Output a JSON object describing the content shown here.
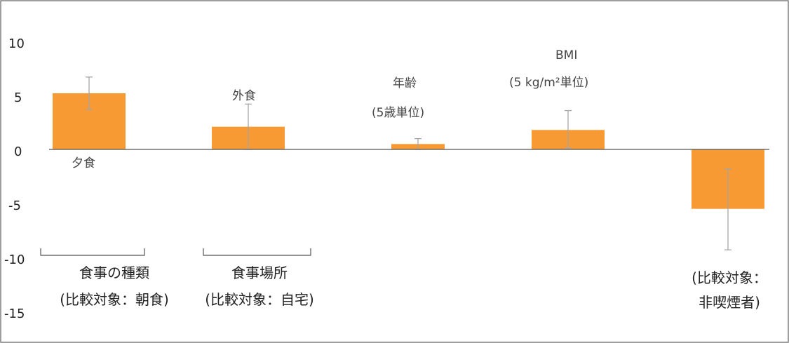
{
  "chart_data": {
    "type": "bar",
    "ylim": [
      -15,
      12
    ],
    "yticks": [
      "10",
      "5",
      "0",
      "-5",
      "-10",
      "-15"
    ],
    "bar_color": "#F79A33",
    "error_bar_color": "#A6A6A6",
    "bars": [
      {
        "label": "夕食",
        "value": 5.2,
        "err_low": 3.7,
        "err_high": 6.7
      },
      {
        "label": "外食",
        "value": 2.1,
        "err_low": 0.0,
        "err_high": 4.2
      },
      {
        "label_line1": "年齢",
        "label_line2": "(5歳単位)",
        "value": 0.5,
        "err_low": 0.0,
        "err_high": 1.0
      },
      {
        "label_line1": "BMI",
        "label_line2": "(5 kg/m²単位)",
        "value": 1.8,
        "err_low": 0.1,
        "err_high": 3.6
      },
      {
        "label": "",
        "value": -5.5,
        "err_low": -9.3,
        "err_high": -1.8
      }
    ],
    "group_labels": [
      {
        "line1": "食事の種類",
        "line2": "(比較対象：朝食)"
      },
      {
        "line1": "食事場所",
        "line2": "(比較対象：自宅)"
      },
      {
        "line1": "(比較対象：",
        "line2": "非喫煙者)"
      }
    ]
  }
}
